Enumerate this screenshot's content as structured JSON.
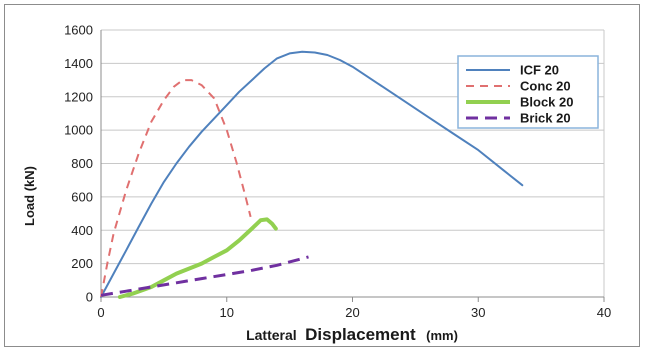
{
  "chart_data": {
    "type": "line",
    "title": "",
    "xlabel": {
      "prefix": "Latteral",
      "main": "Displacement",
      "unit": "(mm)"
    },
    "ylabel": "Load  (kN)",
    "xlim": [
      0,
      40
    ],
    "ylim": [
      0,
      1600
    ],
    "xticks": [
      0,
      10,
      20,
      30,
      40
    ],
    "yticks": [
      0,
      200,
      400,
      600,
      800,
      1000,
      1200,
      1400,
      1600
    ],
    "grid": "horizontal",
    "legend_position": "top-right",
    "series": [
      {
        "name": "ICF 20",
        "color": "#4f81bd",
        "style": "solid",
        "width": 2,
        "points": [
          [
            0,
            0
          ],
          [
            1,
            140
          ],
          [
            2,
            280
          ],
          [
            3,
            420
          ],
          [
            4,
            560
          ],
          [
            5,
            690
          ],
          [
            6,
            800
          ],
          [
            7,
            900
          ],
          [
            8,
            990
          ],
          [
            9,
            1070
          ],
          [
            10,
            1150
          ],
          [
            11,
            1230
          ],
          [
            12,
            1300
          ],
          [
            13,
            1370
          ],
          [
            14,
            1430
          ],
          [
            15,
            1460
          ],
          [
            16,
            1470
          ],
          [
            17,
            1465
          ],
          [
            18,
            1450
          ],
          [
            19,
            1420
          ],
          [
            20,
            1380
          ],
          [
            22,
            1280
          ],
          [
            24,
            1180
          ],
          [
            26,
            1080
          ],
          [
            28,
            980
          ],
          [
            30,
            880
          ],
          [
            32,
            760
          ],
          [
            33.5,
            670
          ]
        ]
      },
      {
        "name": "Conc 20",
        "color": "#e07070",
        "style": "dashed",
        "width": 2,
        "points": [
          [
            0,
            0
          ],
          [
            0.5,
            200
          ],
          [
            1,
            380
          ],
          [
            2,
            640
          ],
          [
            3,
            860
          ],
          [
            4,
            1050
          ],
          [
            5,
            1180
          ],
          [
            5.8,
            1260
          ],
          [
            6.5,
            1300
          ],
          [
            7.2,
            1300
          ],
          [
            8,
            1270
          ],
          [
            9,
            1190
          ],
          [
            10,
            1000
          ],
          [
            10.8,
            800
          ],
          [
            11.5,
            600
          ],
          [
            11.9,
            480
          ]
        ]
      },
      {
        "name": "Block 20",
        "color": "#92d050",
        "style": "solid",
        "width": 4,
        "points": [
          [
            1.5,
            0
          ],
          [
            2.5,
            20
          ],
          [
            4,
            60
          ],
          [
            5,
            100
          ],
          [
            6,
            140
          ],
          [
            7,
            170
          ],
          [
            8,
            200
          ],
          [
            9,
            240
          ],
          [
            10,
            280
          ],
          [
            11,
            340
          ],
          [
            12,
            410
          ],
          [
            12.7,
            460
          ],
          [
            13.2,
            465
          ],
          [
            13.6,
            440
          ],
          [
            13.9,
            410
          ]
        ]
      },
      {
        "name": "Brick 20",
        "color": "#7030a0",
        "style": "dashed",
        "width": 3,
        "points": [
          [
            0,
            10
          ],
          [
            2,
            35
          ],
          [
            4,
            60
          ],
          [
            6,
            85
          ],
          [
            8,
            110
          ],
          [
            10,
            135
          ],
          [
            12,
            160
          ],
          [
            14,
            190
          ],
          [
            16,
            230
          ],
          [
            16.5,
            240
          ]
        ]
      }
    ]
  }
}
